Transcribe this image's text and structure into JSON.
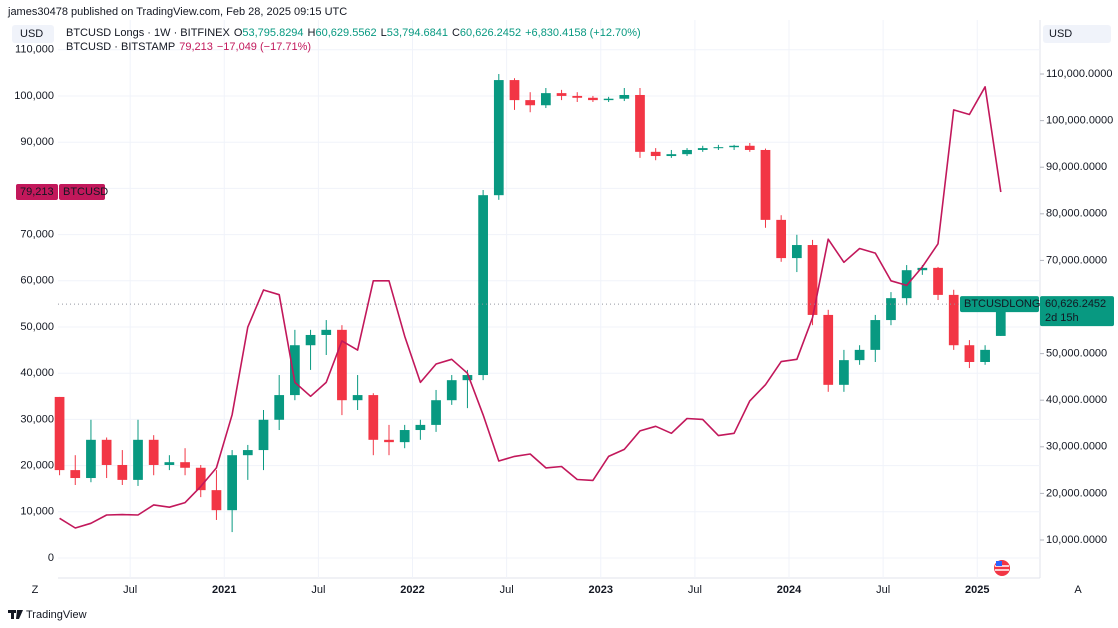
{
  "header": {
    "publisher": "james30478 published on TradingView.com, Feb 28, 2025 09:15 UTC",
    "left_currency": "USD",
    "right_currency": "USD",
    "corner_left": "Z",
    "corner_right": "A",
    "logo": "TradingView"
  },
  "chart_data": {
    "type": "combo",
    "grid": true,
    "categories": [
      null,
      null,
      null,
      null,
      null,
      null,
      null,
      null,
      null,
      null,
      null,
      null,
      null,
      null,
      null,
      null,
      null,
      null,
      null,
      null,
      null,
      null,
      null,
      null,
      null,
      null,
      null,
      null,
      null,
      null,
      null,
      null,
      null,
      null,
      null,
      null,
      null,
      null,
      null,
      null,
      null,
      null,
      null,
      null,
      null,
      null,
      null,
      null,
      null,
      null,
      null,
      null,
      null,
      null,
      null,
      null,
      null,
      null,
      null,
      null,
      null
    ],
    "xlim": [
      -0.1,
      62.5
    ],
    "xticks": [
      {
        "value": 4.5,
        "label": "Jul"
      },
      {
        "value": 10.5,
        "label": "2021"
      },
      {
        "value": 16.5,
        "label": "Jul"
      },
      {
        "value": 22.5,
        "label": "2022"
      },
      {
        "value": 28.5,
        "label": "Jul"
      },
      {
        "value": 34.5,
        "label": "2023"
      },
      {
        "value": 40.5,
        "label": "Jul"
      },
      {
        "value": 46.5,
        "label": "2024"
      },
      {
        "value": 52.5,
        "label": "Jul"
      },
      {
        "value": 58.5,
        "label": "2025"
      }
    ],
    "ylim": [
      -4329,
      111255
    ],
    "yticks": [
      0,
      {
        "value": 10000,
        "label": "10,000"
      },
      {
        "value": 20000,
        "label": "20,000"
      },
      {
        "value": 30000,
        "label": "30,000"
      },
      {
        "value": 40000,
        "label": "40,000"
      },
      {
        "value": 50000,
        "label": "50,000"
      },
      {
        "value": 60000,
        "label": "60,000"
      },
      {
        "value": 70000,
        "label": "70,000"
      },
      {
        "value": 80000,
        "label": "80,000"
      },
      {
        "value": 90000,
        "label": "90,000"
      },
      {
        "value": 100000,
        "label": "100,000"
      },
      {
        "value": 110000,
        "label": "110,000"
      }
    ],
    "y2lim": [
      1845,
      116442
    ],
    "y2ticks": [
      {
        "value": 10000,
        "label": "10,000.0000"
      },
      {
        "value": 20000,
        "label": "20,000.0000"
      },
      {
        "value": 30000,
        "label": "30,000.0000"
      },
      {
        "value": 40000,
        "label": "40,000.0000"
      },
      {
        "value": 50000,
        "label": "50,000.0000"
      },
      {
        "value": 60000,
        "label": "60,000.0000"
      },
      {
        "value": 70000,
        "label": "70,000.0000"
      },
      {
        "value": 80000,
        "label": "80,000.0000"
      },
      {
        "value": 90000,
        "label": "90,000.0000"
      },
      {
        "value": 100000,
        "label": "100,000.0000"
      },
      {
        "value": 110000,
        "label": "110,000.0000"
      }
    ],
    "series": [
      {
        "name": "BTCUSD Longs · 1W · BITFINEX",
        "type": "candlestick",
        "axis": "y2",
        "up_color": "#089981",
        "down_color": "#f23645",
        "badge": "BTCUSDLONGS",
        "last_label": "60,626.2452",
        "countdown": "2d 15h",
        "stats": [
          {
            "key": "O",
            "value": "53,795.8294"
          },
          {
            "key": "H",
            "value": "60,629.5562"
          },
          {
            "key": "L",
            "value": "53,794.6841"
          },
          {
            "key": "C",
            "value": "60,626.2452"
          },
          {
            "value": "+6,830.4158 (+12.70%)"
          }
        ],
        "open": [
          40700,
          25000,
          23300,
          31500,
          26100,
          22900,
          31500,
          26100,
          26700,
          25500,
          20700,
          16400,
          28200,
          29300,
          35800,
          41100,
          51800,
          54000,
          55100,
          40000,
          41100,
          31500,
          31000,
          33600,
          34700,
          40000,
          44300,
          45400,
          84000,
          108700,
          104400,
          103300,
          105900,
          105300,
          104900,
          104400,
          104700,
          105500,
          93300,
          92400,
          92800,
          93700,
          94100,
          94300,
          94600,
          93700,
          78700,
          70500,
          73300,
          58300,
          43300,
          48600,
          50800,
          57200,
          61900,
          67900,
          68400,
          62600,
          51800,
          48200,
          53795.8294
        ],
        "high": [
          40700,
          28200,
          35800,
          32000,
          29300,
          35800,
          32500,
          28200,
          29700,
          26100,
          25000,
          29300,
          30400,
          37900,
          45400,
          55100,
          55100,
          57200,
          56100,
          45400,
          41500,
          34700,
          34700,
          35800,
          42200,
          45400,
          46500,
          85100,
          110000,
          109100,
          106100,
          107000,
          106600,
          106100,
          105300,
          105100,
          107000,
          107000,
          94100,
          93700,
          94100,
          94600,
          94800,
          94800,
          95200,
          94000,
          79700,
          75500,
          74400,
          59400,
          50800,
          51800,
          58300,
          63200,
          69000,
          69000,
          68600,
          63700,
          52900,
          51800,
          60629.5562
        ],
        "low": [
          23900,
          21800,
          22400,
          23300,
          21800,
          21600,
          23900,
          25000,
          23900,
          19200,
          14300,
          11700,
          22900,
          25000,
          33600,
          40000,
          46500,
          49700,
          36800,
          37900,
          28200,
          28200,
          29700,
          31500,
          33200,
          39000,
          38300,
          44300,
          83000,
          102300,
          101800,
          102700,
          104400,
          104000,
          104000,
          104000,
          104200,
          92000,
          91500,
          92000,
          92400,
          93300,
          93700,
          93700,
          93300,
          77000,
          69700,
          67500,
          56100,
          41800,
          41800,
          47600,
          48200,
          56100,
          60400,
          66900,
          61500,
          50800,
          46900,
          47600,
          53794.6841
        ],
        "close": [
          25000,
          23300,
          31500,
          26100,
          22900,
          31500,
          26100,
          26700,
          25500,
          20700,
          16400,
          28200,
          29300,
          35800,
          41100,
          51800,
          54000,
          55100,
          40000,
          41100,
          31500,
          31000,
          33600,
          34700,
          40000,
          44300,
          45400,
          84000,
          108700,
          104400,
          103300,
          105900,
          105300,
          104900,
          104400,
          104700,
          105500,
          93300,
          92400,
          92800,
          93700,
          94100,
          94300,
          94600,
          93700,
          78700,
          70500,
          73300,
          58300,
          43300,
          48600,
          50800,
          57200,
          61900,
          67900,
          68400,
          62600,
          51800,
          48200,
          50800,
          60626.2452
        ]
      },
      {
        "name": "BTCUSD · BITSTAMP",
        "type": "line",
        "axis": "y",
        "color": "#c2185b",
        "badge": "BTCUSD",
        "last_label": "79,213",
        "stats": [
          {
            "value": "79,213"
          },
          {
            "value": "−17,049 (−17.71%)"
          }
        ],
        "values": [
          8600,
          6500,
          7500,
          9300,
          9400,
          9300,
          11500,
          11000,
          12000,
          15500,
          19500,
          31000,
          50000,
          58000,
          57000,
          38000,
          35000,
          38000,
          47000,
          45000,
          60000,
          60000,
          48000,
          38000,
          42000,
          43000,
          40000,
          31000,
          21000,
          22000,
          22500,
          19500,
          19800,
          17000,
          16800,
          22000,
          23500,
          27500,
          28500,
          27000,
          30200,
          30000,
          26500,
          27000,
          34000,
          37500,
          42500,
          43000,
          52000,
          69000,
          64000,
          67000,
          66000,
          60000,
          59000,
          63000,
          68000,
          97000,
          96000,
          102000,
          79213
        ]
      }
    ]
  }
}
